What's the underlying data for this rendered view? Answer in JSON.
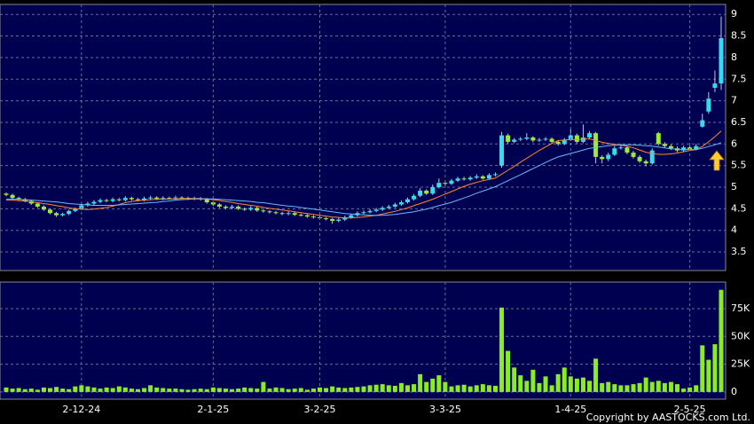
{
  "chart_data": [
    {
      "type": "candlestick",
      "ylim": [
        3.07,
        9.23
      ],
      "yticks": [
        3.5,
        4,
        4.5,
        5,
        5.5,
        6,
        6.5,
        7,
        7.5,
        8,
        8.5,
        9
      ],
      "grid": true,
      "up_color": "#33ddee",
      "down_color": "#99ee33",
      "ohlc": [
        [
          4.85,
          4.88,
          4.79,
          4.82
        ],
        [
          4.82,
          4.85,
          4.72,
          4.75
        ],
        [
          4.75,
          4.78,
          4.69,
          4.72
        ],
        [
          4.72,
          4.75,
          4.65,
          4.68
        ],
        [
          4.68,
          4.71,
          4.59,
          4.62
        ],
        [
          4.62,
          4.65,
          4.52,
          4.55
        ],
        [
          4.55,
          4.58,
          4.45,
          4.48
        ],
        [
          4.48,
          4.51,
          4.37,
          4.4
        ],
        [
          4.4,
          4.43,
          4.31,
          4.35
        ],
        [
          4.35,
          4.41,
          4.32,
          4.38
        ],
        [
          4.38,
          4.48,
          4.35,
          4.45
        ],
        [
          4.45,
          4.53,
          4.42,
          4.5
        ],
        [
          4.5,
          4.62,
          4.47,
          4.58
        ],
        [
          4.58,
          4.66,
          4.55,
          4.62
        ],
        [
          4.62,
          4.7,
          4.59,
          4.66
        ],
        [
          4.66,
          4.74,
          4.63,
          4.7
        ],
        [
          4.7,
          4.73,
          4.65,
          4.68
        ],
        [
          4.68,
          4.76,
          4.65,
          4.72
        ],
        [
          4.72,
          4.75,
          4.67,
          4.7
        ],
        [
          4.7,
          4.79,
          4.67,
          4.75
        ],
        [
          4.75,
          4.78,
          4.69,
          4.72
        ],
        [
          4.72,
          4.75,
          4.67,
          4.7
        ],
        [
          4.7,
          4.78,
          4.67,
          4.74
        ],
        [
          4.74,
          4.8,
          4.71,
          4.76
        ],
        [
          4.76,
          4.79,
          4.7,
          4.73
        ],
        [
          4.73,
          4.79,
          4.7,
          4.75
        ],
        [
          4.75,
          4.78,
          4.71,
          4.74
        ],
        [
          4.74,
          4.8,
          4.71,
          4.76
        ],
        [
          4.76,
          4.79,
          4.72,
          4.75
        ],
        [
          4.75,
          4.78,
          4.7,
          4.73
        ],
        [
          4.73,
          4.78,
          4.7,
          4.74
        ],
        [
          4.74,
          4.77,
          4.69,
          4.72
        ],
        [
          4.72,
          4.75,
          4.62,
          4.65
        ],
        [
          4.65,
          4.68,
          4.57,
          4.6
        ],
        [
          4.6,
          4.63,
          4.52,
          4.55
        ],
        [
          4.55,
          4.58,
          4.49,
          4.52
        ],
        [
          4.52,
          4.59,
          4.49,
          4.55
        ],
        [
          4.55,
          4.58,
          4.47,
          4.5
        ],
        [
          4.5,
          4.53,
          4.45,
          4.48
        ],
        [
          4.48,
          4.56,
          4.45,
          4.52
        ],
        [
          4.52,
          4.55,
          4.43,
          4.46
        ],
        [
          4.46,
          4.49,
          4.41,
          4.44
        ],
        [
          4.44,
          4.47,
          4.39,
          4.42
        ],
        [
          4.42,
          4.45,
          4.37,
          4.4
        ],
        [
          4.4,
          4.43,
          4.35,
          4.38
        ],
        [
          4.38,
          4.44,
          4.35,
          4.4
        ],
        [
          4.4,
          4.43,
          4.33,
          4.36
        ],
        [
          4.36,
          4.39,
          4.32,
          4.35
        ],
        [
          4.35,
          4.38,
          4.29,
          4.32
        ],
        [
          4.32,
          4.35,
          4.27,
          4.3
        ],
        [
          4.3,
          4.33,
          4.25,
          4.28
        ],
        [
          4.28,
          4.31,
          4.23,
          4.26
        ],
        [
          4.26,
          4.29,
          4.15,
          4.22
        ],
        [
          4.22,
          4.29,
          4.19,
          4.25
        ],
        [
          4.25,
          4.34,
          4.22,
          4.3
        ],
        [
          4.3,
          4.39,
          4.27,
          4.35
        ],
        [
          4.35,
          4.44,
          4.32,
          4.4
        ],
        [
          4.4,
          4.46,
          4.37,
          4.42
        ],
        [
          4.42,
          4.49,
          4.39,
          4.45
        ],
        [
          4.45,
          4.52,
          4.42,
          4.48
        ],
        [
          4.48,
          4.56,
          4.45,
          4.52
        ],
        [
          4.52,
          4.59,
          4.49,
          4.55
        ],
        [
          4.55,
          4.64,
          4.52,
          4.6
        ],
        [
          4.6,
          4.69,
          4.57,
          4.65
        ],
        [
          4.65,
          4.76,
          4.62,
          4.72
        ],
        [
          4.72,
          4.84,
          4.69,
          4.8
        ],
        [
          4.8,
          4.98,
          4.77,
          4.92
        ],
        [
          4.92,
          4.95,
          4.82,
          4.85
        ],
        [
          4.85,
          5.06,
          4.82,
          5.0
        ],
        [
          5.0,
          5.2,
          4.97,
          5.1
        ],
        [
          5.1,
          5.14,
          5.04,
          5.08
        ],
        [
          5.08,
          5.19,
          5.05,
          5.15
        ],
        [
          5.15,
          5.24,
          5.12,
          5.2
        ],
        [
          5.2,
          5.24,
          5.15,
          5.18
        ],
        [
          5.18,
          5.26,
          5.15,
          5.22
        ],
        [
          5.22,
          5.3,
          5.19,
          5.25
        ],
        [
          5.25,
          5.28,
          5.17,
          5.2
        ],
        [
          5.2,
          5.32,
          5.17,
          5.28
        ],
        [
          5.28,
          5.34,
          5.25,
          5.3
        ],
        [
          5.5,
          6.28,
          5.45,
          6.2
        ],
        [
          6.2,
          6.24,
          6.0,
          6.05
        ],
        [
          6.05,
          6.14,
          6.02,
          6.1
        ],
        [
          6.1,
          6.16,
          6.07,
          6.12
        ],
        [
          6.12,
          6.25,
          6.09,
          6.15
        ],
        [
          6.15,
          6.18,
          6.04,
          6.08
        ],
        [
          6.08,
          6.14,
          6.05,
          6.1
        ],
        [
          6.1,
          6.16,
          6.07,
          6.12
        ],
        [
          6.12,
          6.15,
          6.01,
          6.05
        ],
        [
          6.05,
          6.08,
          5.96,
          6.0
        ],
        [
          6.0,
          6.14,
          5.97,
          6.1
        ],
        [
          6.1,
          6.35,
          6.07,
          6.2
        ],
        [
          6.2,
          6.24,
          6.01,
          6.05
        ],
        [
          6.05,
          6.45,
          6.02,
          6.15
        ],
        [
          6.15,
          6.3,
          6.12,
          6.25
        ],
        [
          6.25,
          6.28,
          5.55,
          5.7
        ],
        [
          5.7,
          5.74,
          5.55,
          5.65
        ],
        [
          5.65,
          5.8,
          5.6,
          5.75
        ],
        [
          5.75,
          5.95,
          5.72,
          5.9
        ],
        [
          5.9,
          6.0,
          5.87,
          5.92
        ],
        [
          5.92,
          5.96,
          5.76,
          5.8
        ],
        [
          5.8,
          5.84,
          5.66,
          5.7
        ],
        [
          5.7,
          5.74,
          5.56,
          5.6
        ],
        [
          5.6,
          5.64,
          5.48,
          5.55
        ],
        [
          5.55,
          5.9,
          5.52,
          5.85
        ],
        [
          6.25,
          6.28,
          5.96,
          6.0
        ],
        [
          6.0,
          6.04,
          5.91,
          5.95
        ],
        [
          5.95,
          5.99,
          5.86,
          5.9
        ],
        [
          5.9,
          5.94,
          5.81,
          5.85
        ],
        [
          5.85,
          5.96,
          5.82,
          5.92
        ],
        [
          5.92,
          5.96,
          5.84,
          5.88
        ],
        [
          5.88,
          6.0,
          5.85,
          5.95
        ],
        [
          6.4,
          6.7,
          6.38,
          6.55
        ],
        [
          6.75,
          7.2,
          6.7,
          7.05
        ],
        [
          7.3,
          7.7,
          7.2,
          7.4
        ],
        [
          7.4,
          8.95,
          7.25,
          8.45
        ]
      ],
      "lines": [
        {
          "color": "#ff8833",
          "values": [
            4.7,
            4.7,
            4.69,
            4.68,
            4.66,
            4.64,
            4.62,
            4.6,
            4.57,
            4.55,
            4.52,
            4.5,
            4.49,
            4.48,
            4.49,
            4.51,
            4.53,
            4.56,
            4.6,
            4.64,
            4.67,
            4.69,
            4.7,
            4.71,
            4.72,
            4.72,
            4.73,
            4.73,
            4.74,
            4.74,
            4.74,
            4.74,
            4.73,
            4.71,
            4.69,
            4.67,
            4.65,
            4.62,
            4.6,
            4.58,
            4.56,
            4.53,
            4.51,
            4.49,
            4.47,
            4.45,
            4.43,
            4.41,
            4.39,
            4.37,
            4.35,
            4.33,
            4.31,
            4.3,
            4.29,
            4.29,
            4.3,
            4.31,
            4.33,
            4.35,
            4.38,
            4.41,
            4.44,
            4.48,
            4.52,
            4.57,
            4.62,
            4.67,
            4.72,
            4.78,
            4.84,
            4.9,
            4.96,
            5.02,
            5.07,
            5.11,
            5.15,
            5.18,
            5.21,
            5.3,
            5.39,
            5.48,
            5.58,
            5.67,
            5.76,
            5.85,
            5.93,
            6.01,
            6.08,
            6.09,
            6.1,
            6.1,
            6.11,
            6.12,
            6.08,
            6.04,
            6.01,
            5.99,
            5.97,
            5.95,
            5.91,
            5.86,
            5.81,
            5.78,
            5.76,
            5.76,
            5.77,
            5.79,
            5.82,
            5.85,
            5.87,
            5.94,
            6.05,
            6.17,
            6.3
          ]
        },
        {
          "color": "#66bbff",
          "values": [
            4.72,
            4.72,
            4.72,
            4.71,
            4.7,
            4.69,
            4.68,
            4.67,
            4.66,
            4.64,
            4.62,
            4.61,
            4.6,
            4.59,
            4.58,
            4.58,
            4.58,
            4.58,
            4.59,
            4.6,
            4.61,
            4.62,
            4.63,
            4.64,
            4.65,
            4.67,
            4.68,
            4.7,
            4.71,
            4.72,
            4.73,
            4.73,
            4.73,
            4.73,
            4.72,
            4.71,
            4.7,
            4.69,
            4.68,
            4.67,
            4.65,
            4.64,
            4.62,
            4.6,
            4.58,
            4.56,
            4.55,
            4.53,
            4.51,
            4.49,
            4.47,
            4.45,
            4.43,
            4.41,
            4.39,
            4.38,
            4.37,
            4.36,
            4.35,
            4.35,
            4.35,
            4.36,
            4.37,
            4.39,
            4.41,
            4.43,
            4.46,
            4.49,
            4.53,
            4.57,
            4.61,
            4.65,
            4.7,
            4.75,
            4.8,
            4.86,
            4.91,
            4.96,
            5.01,
            5.08,
            5.15,
            5.22,
            5.29,
            5.36,
            5.43,
            5.5,
            5.57,
            5.64,
            5.7,
            5.74,
            5.78,
            5.82,
            5.86,
            5.9,
            5.92,
            5.94,
            5.96,
            5.97,
            5.98,
            5.98,
            5.98,
            5.97,
            5.96,
            5.95,
            5.93,
            5.91,
            5.89,
            5.88,
            5.87,
            5.87,
            5.87,
            5.9,
            5.94,
            5.98,
            6.03
          ]
        }
      ]
    },
    {
      "type": "bar",
      "ylim": [
        -6500,
        99000
      ],
      "yticks": [
        0,
        {
          "value": 25000,
          "label": "25K"
        },
        {
          "value": 50000,
          "label": "50K"
        },
        {
          "value": 75000,
          "label": "75K"
        }
      ],
      "grid": true,
      "color": "#88ee22",
      "categories": [
        null,
        null,
        null,
        null,
        null,
        null,
        null,
        null,
        null,
        null,
        null,
        null,
        "2-12-24",
        null,
        null,
        null,
        null,
        null,
        null,
        null,
        null,
        null,
        null,
        null,
        null,
        null,
        null,
        null,
        null,
        null,
        null,
        null,
        null,
        "2-1-25",
        null,
        null,
        null,
        null,
        null,
        null,
        null,
        null,
        null,
        null,
        null,
        null,
        null,
        null,
        null,
        null,
        "3-2-25",
        null,
        null,
        null,
        null,
        null,
        null,
        null,
        null,
        null,
        null,
        null,
        null,
        null,
        null,
        null,
        null,
        null,
        null,
        null,
        "3-3-25",
        null,
        null,
        null,
        null,
        null,
        null,
        null,
        null,
        null,
        null,
        null,
        null,
        null,
        null,
        null,
        null,
        null,
        null,
        null,
        "1-4-25",
        null,
        null,
        null,
        null,
        null,
        null,
        null,
        null,
        null,
        null,
        null,
        null,
        null,
        null,
        null,
        null,
        null,
        null,
        "2-5-25",
        null,
        null,
        null,
        null,
        null
      ],
      "values": [
        4000,
        3000,
        3500,
        2500,
        3000,
        2000,
        4000,
        3500,
        4500,
        3000,
        2500,
        5000,
        6000,
        5000,
        4000,
        3000,
        4000,
        3500,
        5000,
        4000,
        3000,
        2500,
        3500,
        6000,
        4000,
        3500,
        3000,
        3000,
        2500,
        2000,
        2500,
        3000,
        2500,
        4000,
        3500,
        3000,
        2500,
        3000,
        4000,
        3500,
        3000,
        9000,
        3000,
        4000,
        3500,
        2500,
        3000,
        3500,
        2000,
        3000,
        4000,
        3500,
        5000,
        4000,
        3500,
        4000,
        4500,
        5000,
        6000,
        6500,
        7000,
        6000,
        5500,
        8000,
        6000,
        7000,
        16000,
        9000,
        12000,
        15000,
        9000,
        5000,
        6000,
        6500,
        5000,
        6000,
        7000,
        6000,
        5500,
        76000,
        37000,
        22000,
        15000,
        10000,
        20000,
        8000,
        14000,
        6000,
        16000,
        22000,
        14000,
        12000,
        13000,
        10000,
        30000,
        8000,
        9000,
        7000,
        6000,
        6000,
        7000,
        8000,
        13000,
        9000,
        10000,
        8000,
        9000,
        7000,
        3000,
        4000,
        6000,
        42000,
        29000,
        43000,
        92000
      ]
    }
  ],
  "copyright": "Copyright by AASTOCKS.com Ltd."
}
